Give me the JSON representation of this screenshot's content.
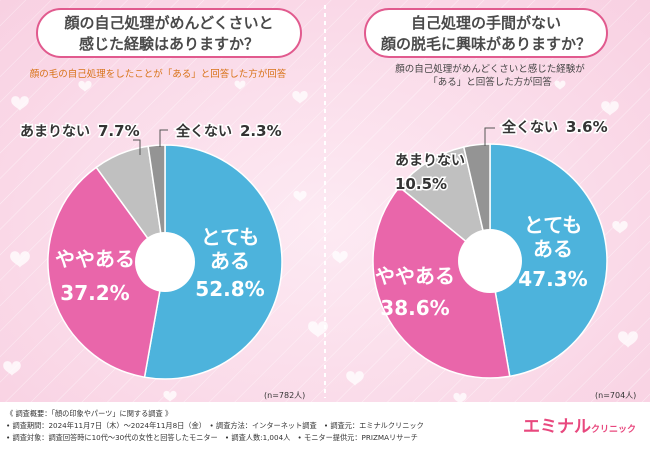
{
  "colors": {
    "blue": "#4db3dc",
    "pink": "#e966aa",
    "gray_light": "#c0c0c0",
    "gray_dark": "#949494"
  },
  "left": {
    "question": [
      "顔の自己処理がめんどくさいと",
      "感じた経験はありますか？"
    ],
    "subtitle": "顔の毛の自己処理をしたことが「ある」と回答した方が回答",
    "n": "(n=782人)"
  },
  "right": {
    "question": [
      "自己処理の手間がない",
      "顔の脱毛に興味がありますか？"
    ],
    "subtitle": [
      "顔の自己処理がめんどくさいと感じた経験が",
      "「ある」と回答した方が回答"
    ],
    "n": "(n=704人)"
  },
  "chart_data": [
    {
      "type": "pie",
      "slices": [
        {
          "label": "とてもある",
          "value": 52.8
        },
        {
          "label": "ややある",
          "value": 37.2
        },
        {
          "label": "あまりない",
          "value": 7.7
        },
        {
          "label": "全くない",
          "value": 2.3
        }
      ],
      "label_lines": [
        [
          "とても",
          "ある",
          "52.8%"
        ],
        [
          "ややある",
          "37.2%"
        ],
        [
          "あまりない",
          "7.7%"
        ],
        [
          "全くない",
          "2.3%"
        ]
      ]
    },
    {
      "type": "pie",
      "slices": [
        {
          "label": "とてもある",
          "value": 47.3
        },
        {
          "label": "ややある",
          "value": 38.6
        },
        {
          "label": "あまりない",
          "value": 10.5
        },
        {
          "label": "全くない",
          "value": 3.6
        }
      ],
      "label_lines": [
        [
          "とても",
          "ある",
          "47.3%"
        ],
        [
          "ややある",
          "38.6%"
        ],
        [
          "あまりない",
          "10.5%"
        ],
        [
          "全くない",
          "3.6%"
        ]
      ]
    }
  ],
  "footer": [
    "《 調査概要：「顔の印象やパーツ」に関する調査 》",
    "• 調査期間：2024年11月7日（木）～2024年11月8日（金）　• 調査方法：インターネット調査　• 調査元：エミナルクリニック",
    "• 調査対象：調査回答時に10代～30代の女性と回答したモニター　• 調査人数:1,004人　• モニター提供元：PRIZMAリサーチ"
  ],
  "logo": {
    "main": "エミナル",
    "sub": "クリニック"
  }
}
